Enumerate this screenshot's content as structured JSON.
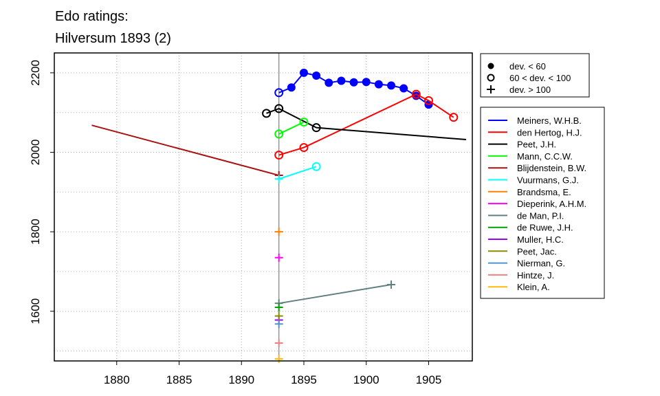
{
  "chart_data": {
    "type": "line",
    "title": "Edo ratings:",
    "subtitle": "Hilversum 1893 (2)",
    "xlabel": "",
    "ylabel": "",
    "xlim": [
      1875,
      1908.5
    ],
    "ylim": [
      1475,
      2250
    ],
    "x_ticks": [
      1880,
      1885,
      1890,
      1895,
      1900,
      1905
    ],
    "y_ticks": [
      1600,
      1800,
      2000,
      2200
    ],
    "grid": true,
    "reference_year": 1893,
    "deviation_legend": [
      {
        "marker": "filled",
        "label": "dev. < 60"
      },
      {
        "marker": "open",
        "label": "60 < dev. < 100"
      },
      {
        "marker": "plus",
        "label": "dev. > 100"
      }
    ],
    "series": [
      {
        "name": "Meiners, W.H.B.",
        "color": "#0000ff",
        "points": [
          {
            "x": 1893,
            "y": 2150,
            "m": "open"
          },
          {
            "x": 1894,
            "y": 2163,
            "m": "filled"
          },
          {
            "x": 1895,
            "y": 2200,
            "m": "filled"
          },
          {
            "x": 1896,
            "y": 2193,
            "m": "filled"
          },
          {
            "x": 1897,
            "y": 2175,
            "m": "filled"
          },
          {
            "x": 1898,
            "y": 2180,
            "m": "filled"
          },
          {
            "x": 1899,
            "y": 2176,
            "m": "filled"
          },
          {
            "x": 1900,
            "y": 2177,
            "m": "filled"
          },
          {
            "x": 1901,
            "y": 2171,
            "m": "filled"
          },
          {
            "x": 1902,
            "y": 2168,
            "m": "filled"
          },
          {
            "x": 1903,
            "y": 2161,
            "m": "filled"
          },
          {
            "x": 1904,
            "y": 2142,
            "m": "filled"
          },
          {
            "x": 1905,
            "y": 2120,
            "m": "filled"
          }
        ]
      },
      {
        "name": "den Hertog, H.J.",
        "color": "#ff0000",
        "points": [
          {
            "x": 1893,
            "y": 1993,
            "m": "open"
          },
          {
            "x": 1895,
            "y": 2012,
            "m": "open"
          },
          {
            "x": 1904,
            "y": 2146,
            "m": "open"
          },
          {
            "x": 1905,
            "y": 2130,
            "m": "open"
          },
          {
            "x": 1907,
            "y": 2088,
            "m": "open"
          }
        ]
      },
      {
        "name": "Peet, J.H.",
        "color": "#000000",
        "points": [
          {
            "x": 1892,
            "y": 2098,
            "m": "open"
          },
          {
            "x": 1893,
            "y": 2110,
            "m": "open"
          },
          {
            "x": 1896,
            "y": 2062,
            "m": "open"
          },
          {
            "x": 1908,
            "y": 2032,
            "m": "none"
          }
        ]
      },
      {
        "name": "Mann, C.C.W.",
        "color": "#00ff00",
        "points": [
          {
            "x": 1893,
            "y": 2046,
            "m": "open"
          },
          {
            "x": 1895,
            "y": 2076,
            "m": "open"
          }
        ]
      },
      {
        "name": "Blijdenstein, B.W.",
        "color": "#aa1111",
        "points": [
          {
            "x": 1878,
            "y": 2068,
            "m": "none"
          },
          {
            "x": 1893,
            "y": 1942,
            "m": "plus"
          }
        ]
      },
      {
        "name": "Vuurmans, G.J.",
        "color": "#00ffff",
        "points": [
          {
            "x": 1893,
            "y": 1933,
            "m": "plus"
          },
          {
            "x": 1896,
            "y": 1964,
            "m": "open"
          }
        ]
      },
      {
        "name": "Brandsma, E.",
        "color": "#ff7f00",
        "points": [
          {
            "x": 1893,
            "y": 1800,
            "m": "plus"
          }
        ]
      },
      {
        "name": "Dieperink, A.H.M.",
        "color": "#ff00ff",
        "points": [
          {
            "x": 1893,
            "y": 1735,
            "m": "plus"
          }
        ]
      },
      {
        "name": "de Man, P.I.",
        "color": "#5f7f80",
        "points": [
          {
            "x": 1893,
            "y": 1620,
            "m": "plus"
          },
          {
            "x": 1902,
            "y": 1667,
            "m": "plus"
          }
        ]
      },
      {
        "name": "de Ruwe, J.H.",
        "color": "#00a000",
        "points": [
          {
            "x": 1893,
            "y": 1610,
            "m": "plus"
          }
        ]
      },
      {
        "name": "Muller, H.C.",
        "color": "#9900ff",
        "points": [
          {
            "x": 1893,
            "y": 1578,
            "m": "plus"
          }
        ]
      },
      {
        "name": "Peet, Jac.",
        "color": "#8b8b00",
        "points": [
          {
            "x": 1893,
            "y": 1588,
            "m": "plus"
          }
        ]
      },
      {
        "name": "Nierman, G.",
        "color": "#4f94cd",
        "points": [
          {
            "x": 1893,
            "y": 1568,
            "m": "plus"
          }
        ]
      },
      {
        "name": "Hintze, J.",
        "color": "#f08080",
        "points": [
          {
            "x": 1893,
            "y": 1520,
            "m": "plus"
          }
        ]
      },
      {
        "name": "Klein, A.",
        "color": "#ffb90f",
        "points": [
          {
            "x": 1893,
            "y": 1480,
            "m": "plus"
          }
        ]
      }
    ]
  }
}
